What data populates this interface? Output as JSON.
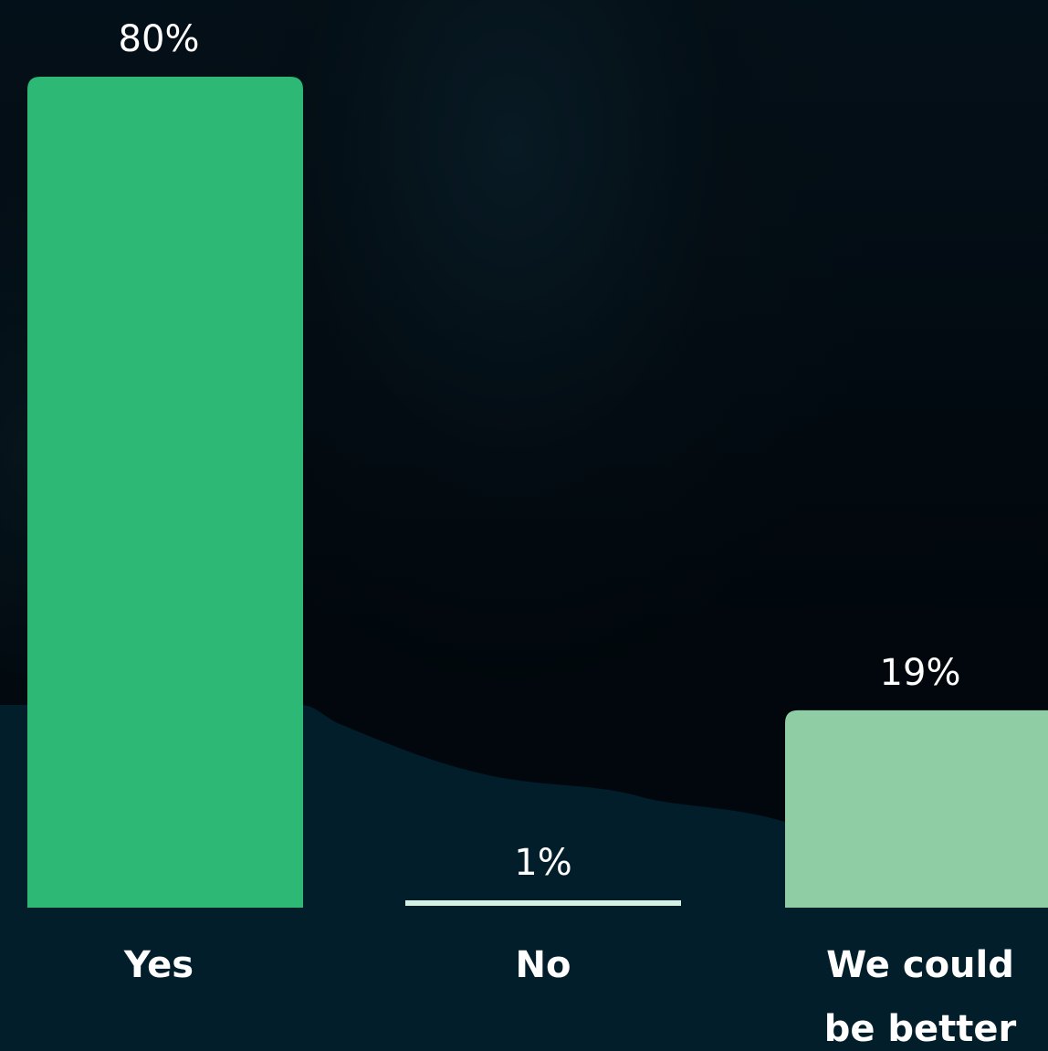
{
  "chart_data": {
    "type": "bar",
    "categories": [
      [
        "Yes"
      ],
      [
        "No"
      ],
      [
        "We could",
        "be better"
      ]
    ],
    "values": [
      80,
      1,
      19
    ],
    "value_labels": [
      "80%",
      "1%",
      "19%"
    ],
    "ylim": [
      0,
      80
    ],
    "grid": false,
    "colors": [
      "#2db875",
      "#d4f1e3",
      "#8fcea4"
    ],
    "background": "#011e2a"
  }
}
